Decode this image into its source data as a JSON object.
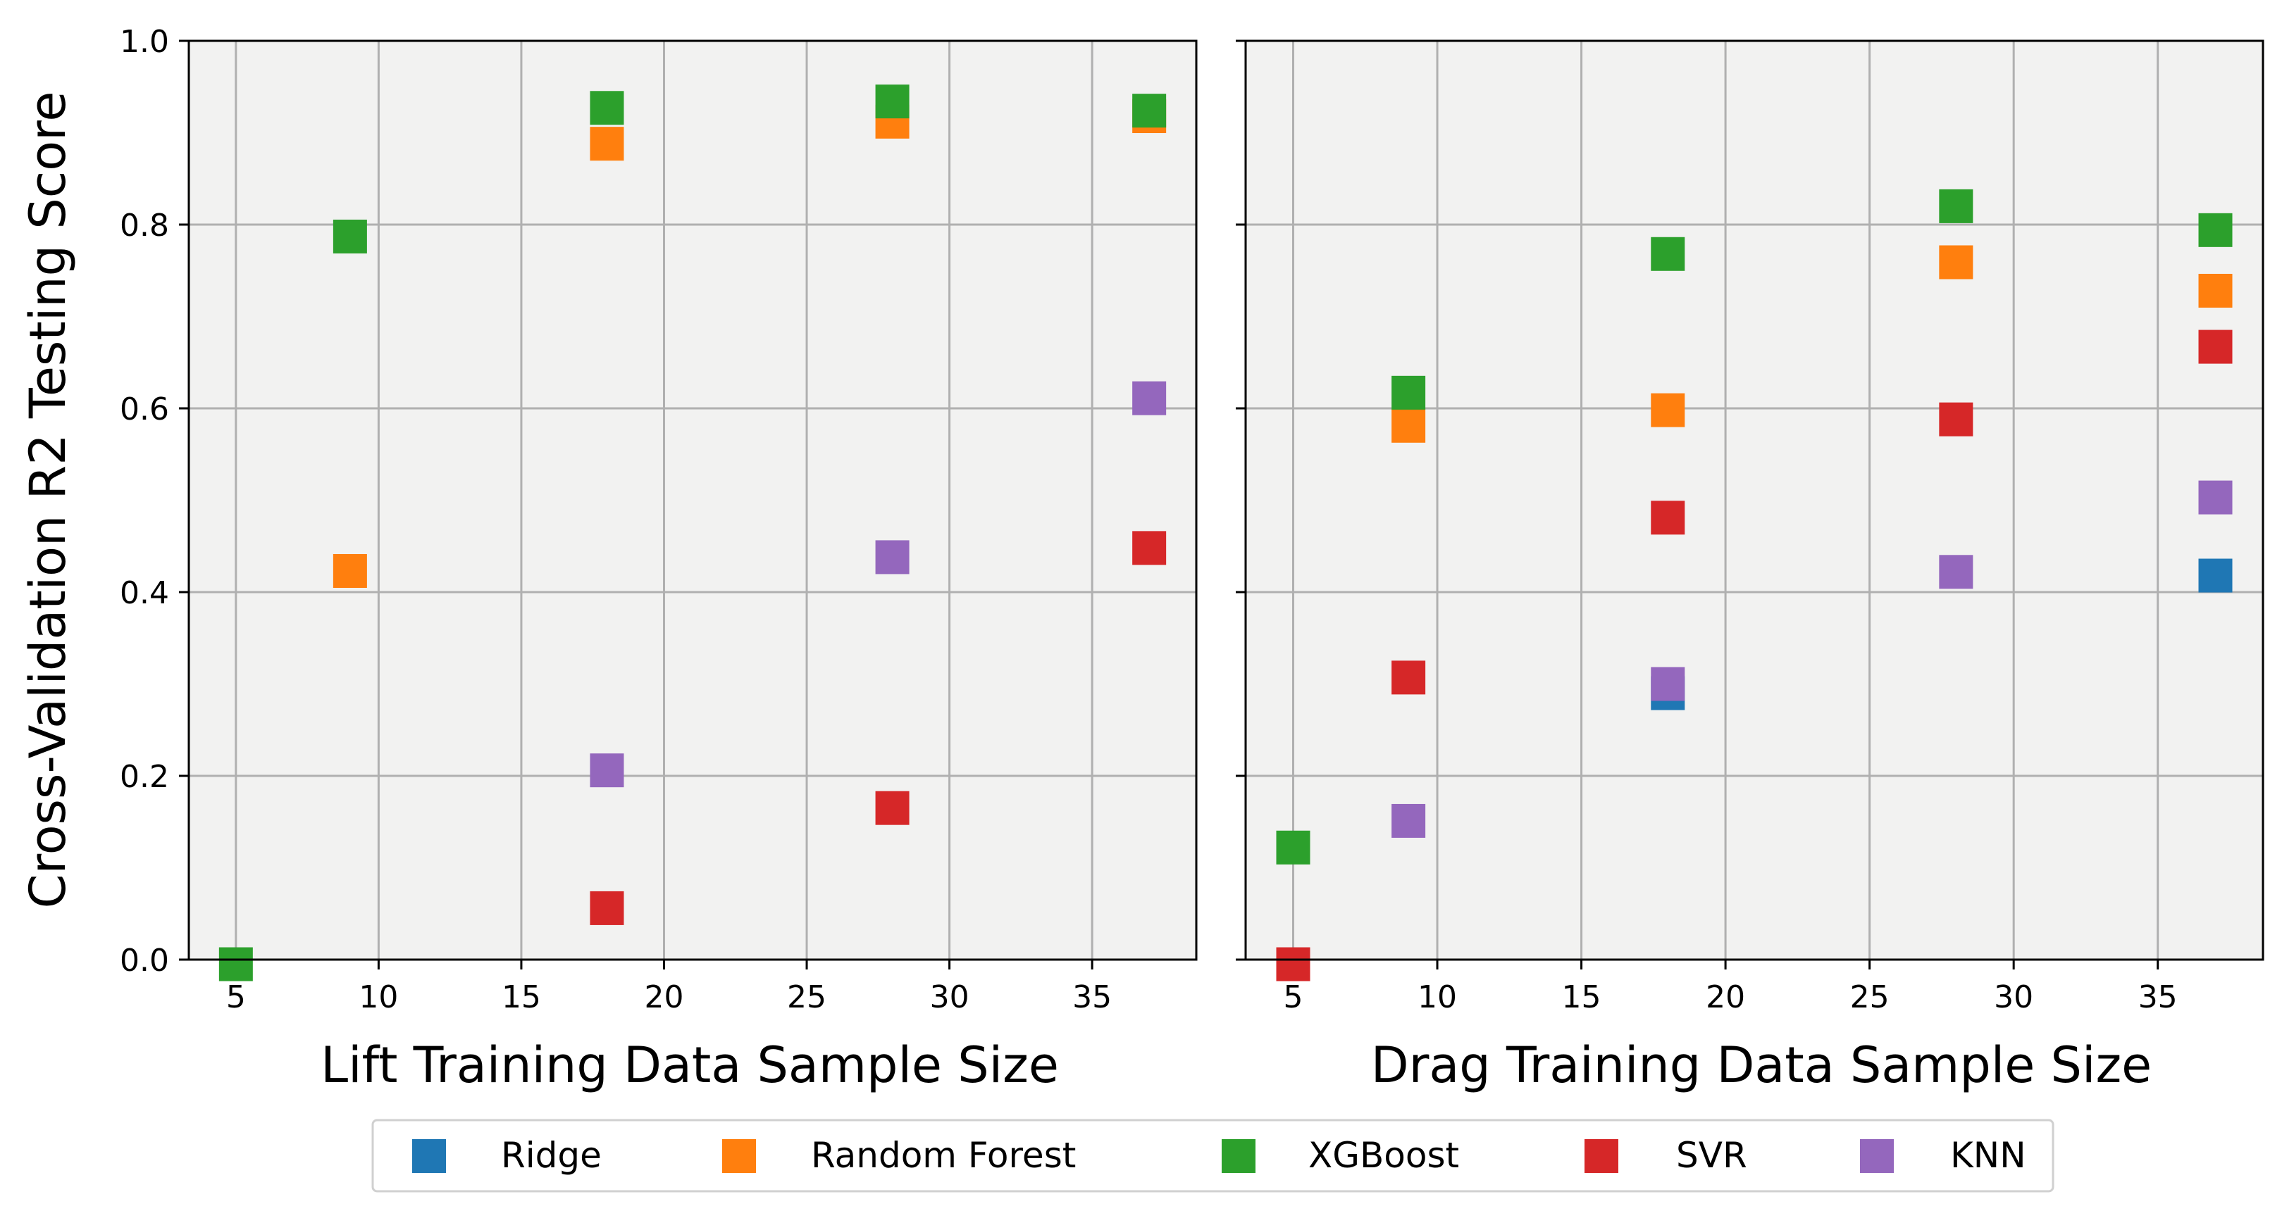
{
  "chart_data": [
    {
      "type": "scatter",
      "xlabel": "Lift Training Data Sample Size",
      "ylabel": "Cross-Validation R2 Testing Score",
      "xlim": [
        3.35,
        38.65
      ],
      "ylim": [
        0.0,
        1.0
      ],
      "xticks": [
        "5",
        "10",
        "15",
        "20",
        "25",
        "30",
        "35"
      ],
      "yticks": [
        "0.0",
        "0.2",
        "0.4",
        "0.6",
        "0.8",
        "1.0"
      ],
      "grid": true,
      "series": [
        {
          "name": "Ridge",
          "color": "#1f77b4",
          "points": []
        },
        {
          "name": "Random Forest",
          "color": "#ff7f0e",
          "points": [
            [
              9,
              0.423
            ],
            [
              18,
              0.888
            ],
            [
              28,
              0.912
            ],
            [
              37,
              0.918
            ]
          ]
        },
        {
          "name": "XGBoost",
          "color": "#2ca02c",
          "points": [
            [
              5,
              -0.005
            ],
            [
              9,
              0.787
            ],
            [
              18,
              0.927
            ],
            [
              28,
              0.934
            ],
            [
              37,
              0.924
            ]
          ]
        },
        {
          "name": "SVR",
          "color": "#d62728",
          "points": [
            [
              18,
              0.056
            ],
            [
              28,
              0.165
            ],
            [
              37,
              0.448
            ]
          ]
        },
        {
          "name": "KNN",
          "color": "#9467bd",
          "points": [
            [
              18,
              0.206
            ],
            [
              28,
              0.438
            ],
            [
              37,
              0.611
            ]
          ]
        }
      ]
    },
    {
      "type": "scatter",
      "xlabel": "Drag Training Data Sample Size",
      "ylabel": "",
      "xlim": [
        3.35,
        38.65
      ],
      "ylim": [
        0.0,
        1.0
      ],
      "xticks": [
        "5",
        "10",
        "15",
        "20",
        "25",
        "30",
        "35"
      ],
      "yticks": [],
      "grid": true,
      "series": [
        {
          "name": "Ridge",
          "color": "#1f77b4",
          "points": [
            [
              18,
              0.29
            ],
            [
              37,
              0.418
            ]
          ]
        },
        {
          "name": "Random Forest",
          "color": "#ff7f0e",
          "points": [
            [
              9,
              0.581
            ],
            [
              18,
              0.598
            ],
            [
              28,
              0.759
            ],
            [
              37,
              0.728
            ]
          ]
        },
        {
          "name": "XGBoost",
          "color": "#2ca02c",
          "points": [
            [
              5,
              0.122
            ],
            [
              9,
              0.617
            ],
            [
              18,
              0.768
            ],
            [
              28,
              0.82
            ],
            [
              37,
              0.794
            ]
          ]
        },
        {
          "name": "SVR",
          "color": "#d62728",
          "points": [
            [
              5,
              -0.005
            ],
            [
              9,
              0.307
            ],
            [
              18,
              0.481
            ],
            [
              28,
              0.588
            ],
            [
              37,
              0.667
            ]
          ]
        },
        {
          "name": "KNN",
          "color": "#9467bd",
          "points": [
            [
              9,
              0.151
            ],
            [
              18,
              0.3
            ],
            [
              28,
              0.422
            ],
            [
              37,
              0.503
            ]
          ]
        }
      ]
    }
  ],
  "legend": {
    "position": "bottom-center",
    "entries": [
      {
        "label": "Ridge",
        "color": "#1f77b4"
      },
      {
        "label": "Random Forest",
        "color": "#ff7f0e"
      },
      {
        "label": "XGBoost",
        "color": "#2ca02c"
      },
      {
        "label": "SVR",
        "color": "#d62728"
      },
      {
        "label": "KNN",
        "color": "#9467bd"
      }
    ]
  },
  "colors": {
    "panel_background": "#f2f2f1",
    "grid": "#b0b0b0",
    "axis": "#000000"
  }
}
